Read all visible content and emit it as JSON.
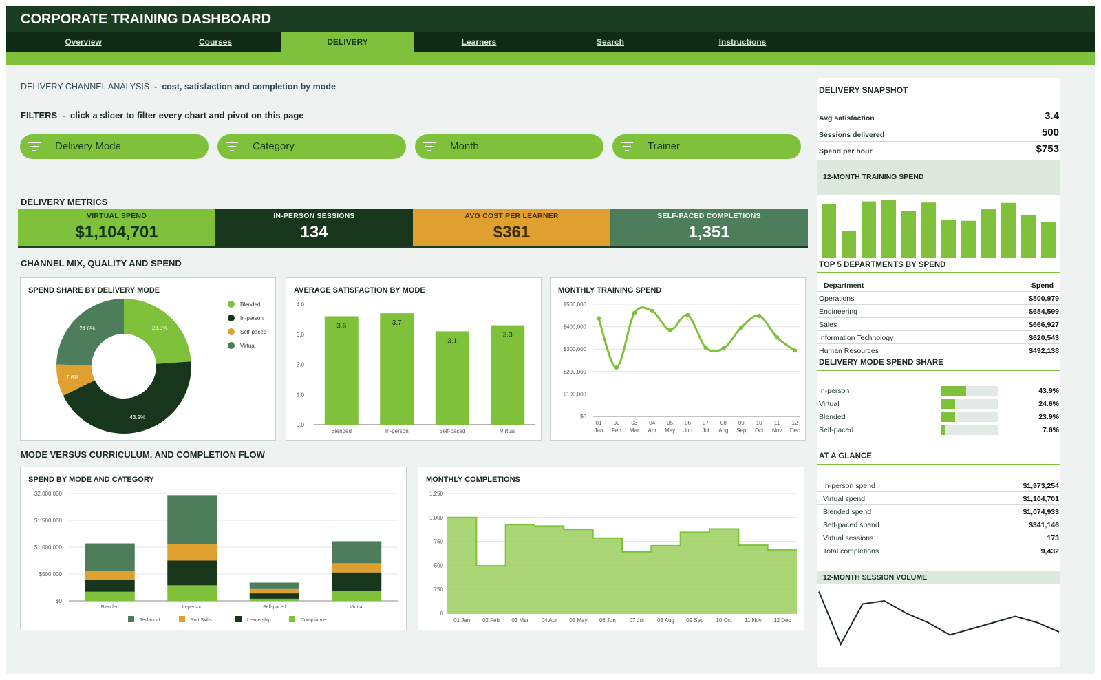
{
  "app": {
    "title": "CORPORATE TRAINING DASHBOARD"
  },
  "nav": {
    "tabs": [
      "Overview",
      "Courses",
      "DELIVERY",
      "Learners",
      "Search",
      "Instructions"
    ],
    "active": "DELIVERY"
  },
  "header": {
    "title": "DELIVERY CHANNEL ANALYSIS",
    "subtitle": "cost, satisfaction and completion by mode"
  },
  "filters": {
    "title": "FILTERS",
    "hint": "click a slicer to filter every chart and pivot on this page",
    "slicers": [
      "Delivery Mode",
      "Category",
      "Month",
      "Trainer"
    ],
    "icon": "filter-icon"
  },
  "metrics": {
    "title": "DELIVERY METRICS",
    "kpis": [
      {
        "label": "VIRTUAL SPEND",
        "value": "$1,104,701",
        "color": "#7fc13a"
      },
      {
        "label": "IN-PERSON SESSIONS",
        "value": "134",
        "color": "#17361c"
      },
      {
        "label": "AVG COST PER LEARNER",
        "value": "$361",
        "color": "#e0a030"
      },
      {
        "label": "SELF-PACED COMPLETIONS",
        "value": "1,351",
        "color": "#4d7d5a"
      }
    ]
  },
  "sections": {
    "mix": "CHANNEL MIX, QUALITY AND SPEND",
    "flow": "MODE VERSUS CURRICULUM, AND COMPLETION FLOW"
  },
  "colors": {
    "blended": "#7fc13a",
    "inperson": "#17361c",
    "selfpaced": "#e0a030",
    "virtual": "#4d7d5a",
    "accent": "#7fc13a",
    "dark": "#1b3d22"
  },
  "chart_data": [
    {
      "id": "spend_share",
      "type": "pie",
      "title": "SPEND SHARE BY DELIVERY MODE",
      "categories": [
        "Blended",
        "In-person",
        "Self-paced",
        "Virtual"
      ],
      "values": [
        23.9,
        43.9,
        7.6,
        24.6
      ],
      "labels": [
        "23.9%",
        "43.9%",
        "7.6%",
        "24.6%"
      ],
      "legend": "right"
    },
    {
      "id": "avg_satisfaction",
      "type": "bar",
      "title": "AVERAGE SATISFACTION BY MODE",
      "categories": [
        "Blended",
        "In-person",
        "Self-paced",
        "Virtual"
      ],
      "values": [
        3.6,
        3.7,
        3.1,
        3.3
      ],
      "ylim": [
        0,
        4
      ],
      "yticks": [
        "0.0",
        "1.0",
        "2.0",
        "3.0",
        "4.0"
      ],
      "grid": false
    },
    {
      "id": "monthly_spend",
      "type": "line",
      "title": "MONTHLY TRAINING SPEND",
      "x_top": [
        "01",
        "02",
        "03",
        "04",
        "05",
        "06",
        "07",
        "08",
        "09",
        "10",
        "11",
        "12"
      ],
      "x": [
        "Jan",
        "Feb",
        "Mar",
        "Apr",
        "May",
        "Jun",
        "Jul",
        "Aug",
        "Sep",
        "Oct",
        "Nov",
        "Dec"
      ],
      "values": [
        437000,
        218000,
        460000,
        470000,
        385000,
        451000,
        307000,
        303000,
        396000,
        448000,
        352000,
        294000
      ],
      "ylim": [
        0,
        500000
      ],
      "yticks": [
        "$0",
        "$100,000",
        "$200,000",
        "$300,000",
        "$400,000",
        "$500,000"
      ],
      "grid": true
    },
    {
      "id": "spend_by_mode_category",
      "type": "bar",
      "stacked": true,
      "title": "SPEND BY MODE AND CATEGORY",
      "categories": [
        "Blended",
        "In-person",
        "Self-paced",
        "Virtual"
      ],
      "series": [
        {
          "name": "Compliance",
          "values": [
            170000,
            290000,
            40000,
            180000
          ]
        },
        {
          "name": "Leadership",
          "values": [
            230000,
            460000,
            100000,
            350000
          ]
        },
        {
          "name": "Soft Skills",
          "values": [
            160000,
            310000,
            80000,
            170000
          ]
        },
        {
          "name": "Technical",
          "values": [
            510000,
            910000,
            120000,
            410000
          ]
        }
      ],
      "legend_order": [
        "Technical",
        "Soft Skills",
        "Leadership",
        "Compliance"
      ],
      "ylim": [
        0,
        2000000
      ],
      "yticks": [
        "$0",
        "$500,000",
        "$1,000,000",
        "$1,500,000",
        "$2,000,000"
      ],
      "legend": "bottom",
      "grid": true
    },
    {
      "id": "monthly_completions",
      "type": "area",
      "title": "MONTHLY COMPLETIONS",
      "x": [
        "01 Jan",
        "02 Feb",
        "03 Mar",
        "04 Apr",
        "05 May",
        "06 Jun",
        "07 Jul",
        "08 Aug",
        "09 Sep",
        "10 Oct",
        "11 Nov",
        "12 Dec"
      ],
      "values": [
        1000,
        495,
        925,
        910,
        875,
        785,
        640,
        705,
        845,
        880,
        710,
        660
      ],
      "ylim": [
        0,
        1250
      ],
      "yticks": [
        "0",
        "250",
        "500",
        "750",
        "1,000",
        "1,250"
      ],
      "grid": true
    },
    {
      "id": "spend_12m",
      "type": "bar",
      "title": "12-MONTH TRAINING SPEND",
      "values": [
        437000,
        218000,
        460000,
        470000,
        385000,
        451000,
        307000,
        303000,
        396000,
        448000,
        352000,
        294000
      ]
    },
    {
      "id": "session_volume",
      "type": "line",
      "title": "12-MONTH SESSION VOLUME",
      "values": [
        49,
        32,
        45,
        46,
        42,
        39,
        35,
        37,
        39,
        41,
        39,
        36
      ]
    }
  ],
  "snapshot": {
    "title": "DELIVERY SNAPSHOT",
    "rows": [
      {
        "label": "Avg satisfaction",
        "value": "3.4"
      },
      {
        "label": "Sessions delivered",
        "value": "500"
      },
      {
        "label": "Spend per hour",
        "value": "$753"
      }
    ],
    "spend_chart_title": "12-MONTH TRAINING SPEND"
  },
  "departments": {
    "title": "TOP 5 DEPARTMENTS BY SPEND",
    "col_dept": "Department",
    "col_spend": "Spend",
    "rows": [
      {
        "name": "Operations",
        "spend": "$800,979"
      },
      {
        "name": "Engineering",
        "spend": "$684,599"
      },
      {
        "name": "Sales",
        "spend": "$666,927"
      },
      {
        "name": "Information Technology",
        "spend": "$620,543"
      },
      {
        "name": "Human Resources",
        "spend": "$492,138"
      }
    ]
  },
  "mode_share": {
    "title": "DELIVERY MODE SPEND SHARE",
    "rows": [
      {
        "label": "In-person",
        "value": "43.9%",
        "pct": 43.9
      },
      {
        "label": "Virtual",
        "value": "24.6%",
        "pct": 24.6
      },
      {
        "label": "Blended",
        "value": "23.9%",
        "pct": 23.9
      },
      {
        "label": "Self-paced",
        "value": "7.6%",
        "pct": 7.6
      }
    ]
  },
  "glance": {
    "title": "AT A GLANCE",
    "rows": [
      {
        "label": "In-person spend",
        "value": "$1,973,254"
      },
      {
        "label": "Virtual spend",
        "value": "$1,104,701"
      },
      {
        "label": "Blended spend",
        "value": "$1,074,933"
      },
      {
        "label": "Self-paced spend",
        "value": "$341,146"
      },
      {
        "label": "Virtual sessions",
        "value": "173"
      },
      {
        "label": "Total completions",
        "value": "9,432"
      }
    ],
    "volume_title": "12-MONTH SESSION VOLUME"
  }
}
